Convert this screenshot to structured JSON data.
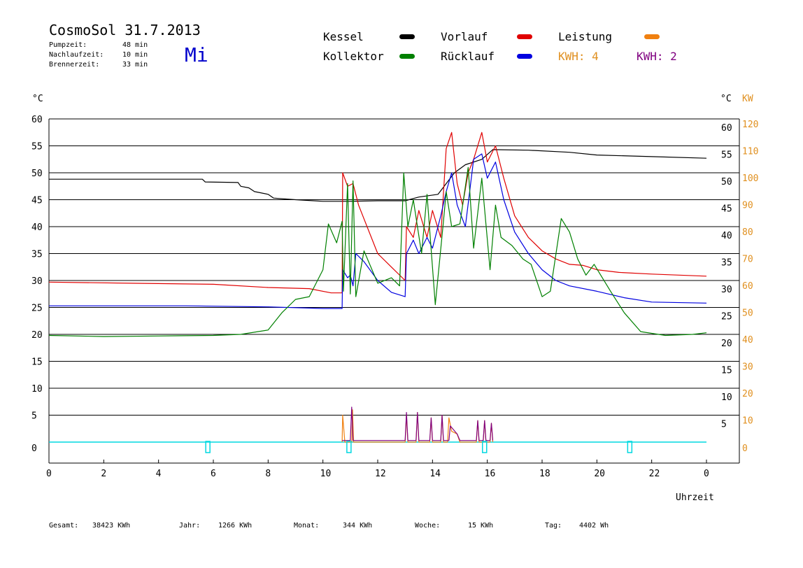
{
  "header": {
    "title": "CosmoSol 31.7.2013",
    "weekday": "Mi",
    "info": [
      {
        "label": "Pumpzeit:",
        "value": "48 min"
      },
      {
        "label": "Nachlaufzeit:",
        "value": "10 min"
      },
      {
        "label": "Brennerzeit:",
        "value": "33 min"
      }
    ]
  },
  "legend": {
    "items": [
      {
        "label": "Kessel",
        "color": "#000000"
      },
      {
        "label": "Vorlauf",
        "color": "#e00000"
      },
      {
        "label": "Leistung",
        "color": "#f08010"
      },
      {
        "label": "Kollektor",
        "color": "#008000"
      },
      {
        "label": "Rücklauf",
        "color": "#0000e0"
      }
    ],
    "kwh": [
      {
        "label": "KWH: 4",
        "color": "#e09020"
      },
      {
        "label": "KWH: 2",
        "color": "#800080"
      }
    ]
  },
  "axes": {
    "left_unit": "°C",
    "right_unit": "°C",
    "right_unit2": "KW",
    "x_label": "Uhrzeit",
    "x_ticks": [
      "0",
      "2",
      "4",
      "6",
      "8",
      "10",
      "12",
      "14",
      "16",
      "18",
      "20",
      "22",
      "0"
    ],
    "left_ticks": [
      "0",
      "5",
      "10",
      "15",
      "20",
      "25",
      "30",
      "35",
      "40",
      "45",
      "50",
      "55",
      "60"
    ],
    "right_ticks": [
      "5",
      "10",
      "15",
      "20",
      "25",
      "30",
      "35",
      "40",
      "45",
      "50",
      "55",
      "60"
    ],
    "kw_ticks": [
      "0",
      "10",
      "20",
      "30",
      "40",
      "50",
      "60",
      "70",
      "80",
      "90",
      "100",
      "110",
      "120"
    ]
  },
  "footer": [
    {
      "label": "Gesamt:",
      "value": "38423 KWh"
    },
    {
      "label": "Jahr:",
      "value": "1266 KWh"
    },
    {
      "label": "Monat:",
      "value": "344 KWh"
    },
    {
      "label": "Woche:",
      "value": "15 KWh"
    },
    {
      "label": "Tag:",
      "value": "4402 Wh"
    }
  ],
  "chart_data": {
    "type": "line",
    "x_unit": "hour",
    "xlim": [
      0,
      24
    ],
    "ylim": [
      0,
      60
    ],
    "grid": true,
    "legend_position": "top",
    "series": [
      {
        "name": "Kessel",
        "color": "#000000",
        "points": [
          [
            0,
            48.8
          ],
          [
            5.6,
            48.8
          ],
          [
            5.7,
            48.3
          ],
          [
            6.9,
            48.2
          ],
          [
            7.0,
            47.5
          ],
          [
            7.3,
            47.2
          ],
          [
            7.5,
            46.5
          ],
          [
            8.0,
            46.0
          ],
          [
            8.2,
            45.3
          ],
          [
            9.0,
            45.0
          ],
          [
            10.0,
            44.7
          ],
          [
            11.0,
            44.7
          ],
          [
            12.0,
            44.8
          ],
          [
            13.0,
            44.8
          ],
          [
            13.5,
            45.5
          ],
          [
            14.2,
            46.0
          ],
          [
            14.8,
            50.0
          ],
          [
            15.2,
            51.5
          ],
          [
            15.8,
            52.5
          ],
          [
            16.2,
            54.3
          ],
          [
            17.5,
            54.2
          ],
          [
            19.0,
            53.8
          ],
          [
            20.0,
            53.3
          ],
          [
            22.0,
            53.0
          ],
          [
            24.0,
            52.7
          ]
        ]
      },
      {
        "name": "Vorlauf",
        "color": "#e00000",
        "points": [
          [
            0,
            29.7
          ],
          [
            3.0,
            29.5
          ],
          [
            6.0,
            29.3
          ],
          [
            8.0,
            28.7
          ],
          [
            9.5,
            28.5
          ],
          [
            10.3,
            27.7
          ],
          [
            10.7,
            27.7
          ],
          [
            10.72,
            50.0
          ],
          [
            10.9,
            47.5
          ],
          [
            11.1,
            48.0
          ],
          [
            11.3,
            44.0
          ],
          [
            12.0,
            35.0
          ],
          [
            12.5,
            32.5
          ],
          [
            13.0,
            30.0
          ],
          [
            13.05,
            40.0
          ],
          [
            13.3,
            38.0
          ],
          [
            13.5,
            43.0
          ],
          [
            13.8,
            38.0
          ],
          [
            14.0,
            43.0
          ],
          [
            14.3,
            38.0
          ],
          [
            14.5,
            54.5
          ],
          [
            14.7,
            57.5
          ],
          [
            14.9,
            48.0
          ],
          [
            15.1,
            44.0
          ],
          [
            15.3,
            50.0
          ],
          [
            15.5,
            52.5
          ],
          [
            15.8,
            57.5
          ],
          [
            16.0,
            52.0
          ],
          [
            16.3,
            55.0
          ],
          [
            16.6,
            49.0
          ],
          [
            17.0,
            42.0
          ],
          [
            17.5,
            38.0
          ],
          [
            18.0,
            35.5
          ],
          [
            18.5,
            34.0
          ],
          [
            19.0,
            33.0
          ],
          [
            19.5,
            32.8
          ],
          [
            20.0,
            32.0
          ],
          [
            20.8,
            31.5
          ],
          [
            22.0,
            31.2
          ],
          [
            24.0,
            30.8
          ]
        ]
      },
      {
        "name": "Rücklauf",
        "color": "#0000e0",
        "points": [
          [
            0,
            25.3
          ],
          [
            5.0,
            25.3
          ],
          [
            8.0,
            25.1
          ],
          [
            10.0,
            24.8
          ],
          [
            10.7,
            24.8
          ],
          [
            10.72,
            32.0
          ],
          [
            10.9,
            30.5
          ],
          [
            11.0,
            31.0
          ],
          [
            11.1,
            29.0
          ],
          [
            11.2,
            35.0
          ],
          [
            11.5,
            33.5
          ],
          [
            12.0,
            30.0
          ],
          [
            12.5,
            27.8
          ],
          [
            13.0,
            27.0
          ],
          [
            13.05,
            35.0
          ],
          [
            13.3,
            37.5
          ],
          [
            13.5,
            35.0
          ],
          [
            13.8,
            38.0
          ],
          [
            14.0,
            36.0
          ],
          [
            14.3,
            42.0
          ],
          [
            14.5,
            46.5
          ],
          [
            14.7,
            50.0
          ],
          [
            14.9,
            44.0
          ],
          [
            15.2,
            40.0
          ],
          [
            15.5,
            52.5
          ],
          [
            15.8,
            53.5
          ],
          [
            16.0,
            49.0
          ],
          [
            16.3,
            52.0
          ],
          [
            16.6,
            45.0
          ],
          [
            17.0,
            39.0
          ],
          [
            17.5,
            35.0
          ],
          [
            18.0,
            32.0
          ],
          [
            18.5,
            30.0
          ],
          [
            19.0,
            29.0
          ],
          [
            20.0,
            28.0
          ],
          [
            21.0,
            26.8
          ],
          [
            22.0,
            26.0
          ],
          [
            24.0,
            25.8
          ]
        ]
      },
      {
        "name": "Kollektor",
        "color": "#008000",
        "points": [
          [
            0,
            19.8
          ],
          [
            2.0,
            19.6
          ],
          [
            4.0,
            19.7
          ],
          [
            6.0,
            19.8
          ],
          [
            7.0,
            20.0
          ],
          [
            8.0,
            20.8
          ],
          [
            8.5,
            24.0
          ],
          [
            9.0,
            26.5
          ],
          [
            9.5,
            27.0
          ],
          [
            10.0,
            32.0
          ],
          [
            10.2,
            40.5
          ],
          [
            10.5,
            37.0
          ],
          [
            10.7,
            41.0
          ],
          [
            10.75,
            28.0
          ],
          [
            10.9,
            48.0
          ],
          [
            11.0,
            27.5
          ],
          [
            11.1,
            48.5
          ],
          [
            11.2,
            27.0
          ],
          [
            11.5,
            35.5
          ],
          [
            12.0,
            29.5
          ],
          [
            12.5,
            30.5
          ],
          [
            12.8,
            29.0
          ],
          [
            12.95,
            50.0
          ],
          [
            13.1,
            40.0
          ],
          [
            13.3,
            45.0
          ],
          [
            13.6,
            35.0
          ],
          [
            13.8,
            46.0
          ],
          [
            14.1,
            25.5
          ],
          [
            14.4,
            41.0
          ],
          [
            14.5,
            46.5
          ],
          [
            14.7,
            40.0
          ],
          [
            15.0,
            40.5
          ],
          [
            15.3,
            51.0
          ],
          [
            15.5,
            36.0
          ],
          [
            15.8,
            49.0
          ],
          [
            16.1,
            32.0
          ],
          [
            16.3,
            44.0
          ],
          [
            16.5,
            38.0
          ],
          [
            16.9,
            36.5
          ],
          [
            17.3,
            34.0
          ],
          [
            17.6,
            33.0
          ],
          [
            18.0,
            27.0
          ],
          [
            18.3,
            28.0
          ],
          [
            18.7,
            41.5
          ],
          [
            19.0,
            39.0
          ],
          [
            19.3,
            34.0
          ],
          [
            19.6,
            31.0
          ],
          [
            19.9,
            33.0
          ],
          [
            20.5,
            28.0
          ],
          [
            21.0,
            24.0
          ],
          [
            21.6,
            20.5
          ],
          [
            22.5,
            19.8
          ],
          [
            23.5,
            20.0
          ],
          [
            24.0,
            20.3
          ]
        ]
      },
      {
        "name": "Leistung",
        "color": "#f08010",
        "points": [
          [
            10.7,
            0
          ],
          [
            10.72,
            5.0
          ],
          [
            10.8,
            0
          ],
          [
            11.05,
            0
          ],
          [
            11.08,
            6.0
          ],
          [
            11.12,
            0
          ],
          [
            13.0,
            0
          ],
          [
            13.05,
            5.0
          ],
          [
            13.1,
            0
          ],
          [
            13.4,
            0
          ],
          [
            13.45,
            5.5
          ],
          [
            13.5,
            0
          ],
          [
            13.9,
            0
          ],
          [
            13.95,
            4.5
          ],
          [
            14.0,
            0
          ],
          [
            14.3,
            0
          ],
          [
            14.35,
            5.0
          ],
          [
            14.4,
            0
          ],
          [
            14.55,
            0
          ],
          [
            14.6,
            4.5
          ],
          [
            14.7,
            2.0
          ],
          [
            14.9,
            1.5
          ],
          [
            15.0,
            0
          ],
          [
            15.6,
            0
          ],
          [
            15.65,
            4.0
          ],
          [
            15.7,
            0
          ],
          [
            15.85,
            0
          ],
          [
            15.9,
            4.0
          ],
          [
            15.95,
            0
          ],
          [
            16.1,
            0
          ],
          [
            16.15,
            3.5
          ],
          [
            16.2,
            0
          ]
        ]
      },
      {
        "name": "Brenner",
        "color": "#800080",
        "points": [
          [
            10.7,
            0.3
          ],
          [
            11.0,
            0.3
          ],
          [
            11.05,
            6.5
          ],
          [
            11.1,
            0.3
          ],
          [
            13.0,
            0.3
          ],
          [
            13.05,
            5.5
          ],
          [
            13.1,
            0.3
          ],
          [
            13.4,
            0.3
          ],
          [
            13.45,
            5.5
          ],
          [
            13.5,
            0.3
          ],
          [
            13.9,
            0.3
          ],
          [
            13.95,
            4.5
          ],
          [
            14.0,
            0.3
          ],
          [
            14.3,
            0.3
          ],
          [
            14.35,
            5.0
          ],
          [
            14.4,
            0.3
          ],
          [
            14.6,
            0.3
          ],
          [
            14.65,
            3.0
          ],
          [
            14.9,
            1.5
          ],
          [
            15.0,
            0.3
          ],
          [
            15.6,
            0.3
          ],
          [
            15.65,
            4.0
          ],
          [
            15.7,
            0.3
          ],
          [
            15.85,
            0.3
          ],
          [
            15.9,
            4.0
          ],
          [
            15.95,
            0.3
          ],
          [
            16.1,
            0.3
          ],
          [
            16.15,
            3.5
          ],
          [
            16.2,
            0.3
          ]
        ]
      }
    ],
    "pump_markers": [
      5.8,
      10.95,
      15.9,
      21.2
    ]
  }
}
